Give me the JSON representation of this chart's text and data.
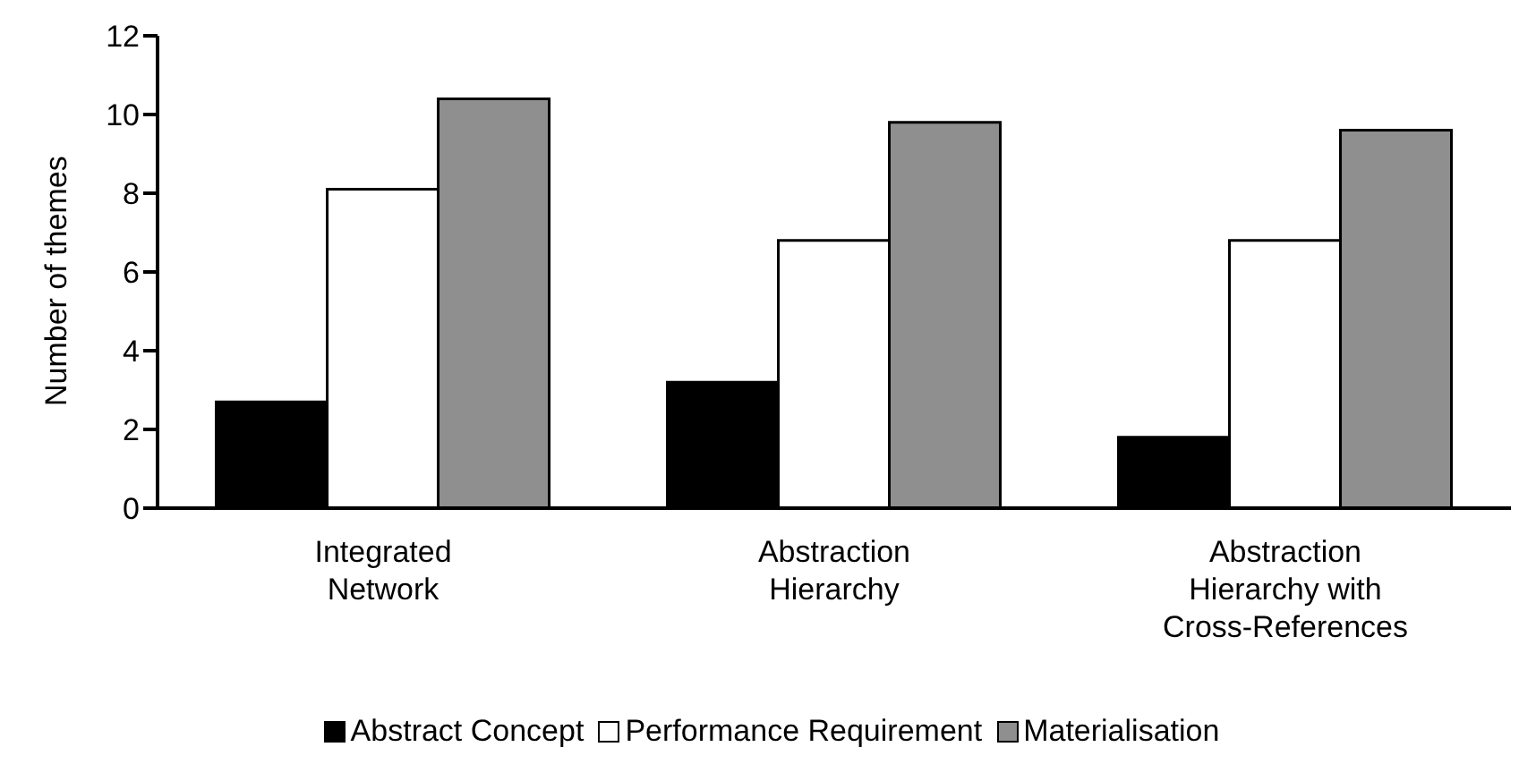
{
  "chart_data": {
    "type": "bar",
    "ylabel": "Number of themes",
    "categories": [
      "Integrated Network",
      "Abstraction Hierarchy",
      "Abstraction Hierarchy with Cross-References"
    ],
    "series": [
      {
        "name": "Abstract Concept",
        "color": "#000000",
        "values": [
          2.7,
          3.2,
          1.8
        ]
      },
      {
        "name": "Performance Requirement",
        "color": "#ffffff",
        "values": [
          8.1,
          6.8,
          6.8
        ]
      },
      {
        "name": "Materialisation",
        "color": "#8f8f8f",
        "values": [
          10.4,
          9.8,
          9.6
        ]
      }
    ],
    "ylim": [
      0,
      12
    ],
    "yticks": [
      0,
      2,
      4,
      6,
      8,
      10,
      12
    ],
    "grid": false,
    "legend": "bottom"
  }
}
